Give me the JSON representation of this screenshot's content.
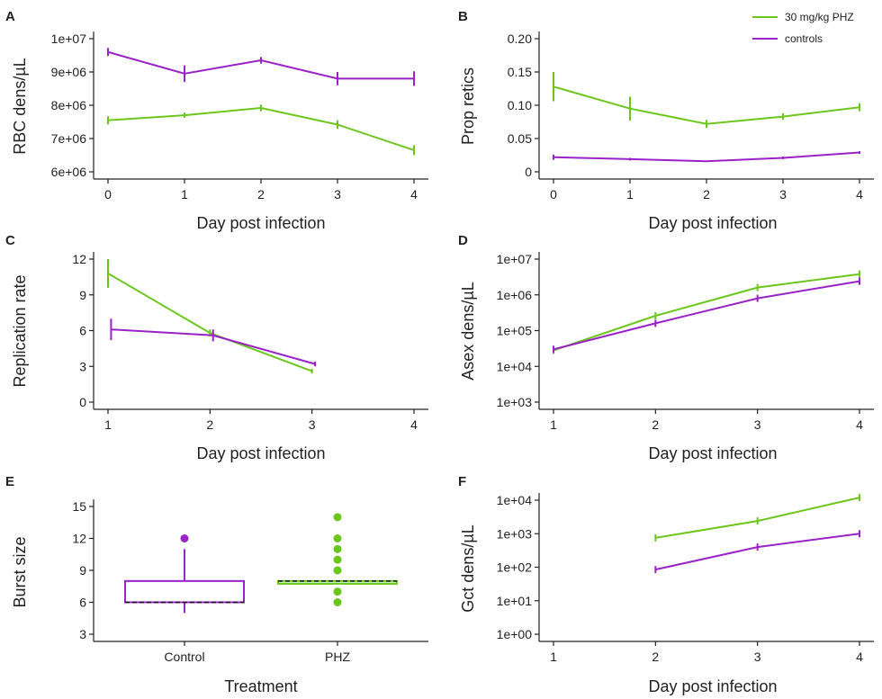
{
  "legend": {
    "items": [
      {
        "label": "30 mg/kg PHZ",
        "color": "#6cc71c"
      },
      {
        "label": "controls",
        "color": "#9a22c8"
      }
    ]
  },
  "chart_data": [
    {
      "panel": "A",
      "type": "line",
      "xlabel": "Day post infection",
      "ylabel": "RBC dens/µL",
      "xlim": [
        0,
        4
      ],
      "ylim": [
        6000000,
        10000000
      ],
      "xticks": [
        0,
        1,
        2,
        3,
        4
      ],
      "yticks": [
        6000000,
        7000000,
        8000000,
        9000000,
        10000000
      ],
      "ytick_labels": [
        "6e+06",
        "7e+06",
        "8e+06",
        "9e+06",
        "1e+07"
      ],
      "series": [
        {
          "name": "30 mg/kg PHZ",
          "color": "#6cc71c",
          "x": [
            0,
            1,
            2,
            3,
            4
          ],
          "values": [
            7550000,
            7700000,
            7920000,
            7420000,
            6650000
          ],
          "err": [
            120000,
            80000,
            100000,
            130000,
            150000
          ]
        },
        {
          "name": "controls",
          "color": "#9a22c8",
          "x": [
            0,
            1,
            2,
            3,
            4
          ],
          "values": [
            9600000,
            8950000,
            9350000,
            8800000,
            8800000
          ],
          "err": [
            120000,
            250000,
            100000,
            200000,
            220000
          ]
        }
      ]
    },
    {
      "panel": "B",
      "type": "line",
      "xlabel": "Day post infection",
      "ylabel": "Prop retics",
      "xlim": [
        0,
        4
      ],
      "ylim": [
        0,
        0.2
      ],
      "xticks": [
        0,
        1,
        2,
        3,
        4
      ],
      "yticks": [
        0,
        0.05,
        0.1,
        0.15,
        0.2
      ],
      "ytick_labels": [
        "0",
        "0.05",
        "0.10",
        "0.15",
        "0.20"
      ],
      "series": [
        {
          "name": "30 mg/kg PHZ",
          "color": "#6cc71c",
          "x": [
            0,
            1,
            2,
            3,
            4
          ],
          "values": [
            0.128,
            0.095,
            0.072,
            0.083,
            0.097
          ],
          "err": [
            0.022,
            0.018,
            0.006,
            0.005,
            0.006
          ]
        },
        {
          "name": "controls",
          "color": "#9a22c8",
          "x": [
            0,
            1,
            2,
            3,
            4
          ],
          "values": [
            0.022,
            0.019,
            0.016,
            0.021,
            0.029
          ],
          "err": [
            0.004,
            0.002,
            0.001,
            0.002,
            0.002
          ]
        }
      ]
    },
    {
      "panel": "C",
      "type": "line",
      "xlabel": "Day post infection",
      "ylabel": "Replication rate",
      "xlim": [
        1,
        4
      ],
      "ylim": [
        0,
        12
      ],
      "xticks": [
        1,
        2,
        3,
        4
      ],
      "yticks": [
        0,
        3,
        6,
        9,
        12
      ],
      "ytick_labels": [
        "0",
        "3",
        "6",
        "9",
        "12"
      ],
      "series": [
        {
          "name": "30 mg/kg PHZ",
          "color": "#6cc71c",
          "x": [
            1,
            2,
            3
          ],
          "values": [
            10.8,
            5.8,
            2.6
          ],
          "err": [
            1.2,
            0.3,
            0.2
          ]
        },
        {
          "name": "controls",
          "color": "#9a22c8",
          "x": [
            1.03,
            2.03,
            3.03
          ],
          "values": [
            6.1,
            5.6,
            3.2
          ],
          "err": [
            0.9,
            0.5,
            0.2
          ]
        }
      ]
    },
    {
      "panel": "D",
      "type": "line",
      "log": true,
      "xlabel": "Day post infection",
      "ylabel": "Asex dens/µL",
      "xlim": [
        1,
        4
      ],
      "ylim": [
        1000,
        10000000
      ],
      "xticks": [
        1,
        2,
        3,
        4
      ],
      "yticks": [
        1000,
        10000,
        100000,
        1000000,
        10000000
      ],
      "ytick_labels": [
        "1e+03",
        "1e+04",
        "1e+05",
        "1e+06",
        "1e+07"
      ],
      "series": [
        {
          "name": "30 mg/kg PHZ",
          "color": "#6cc71c",
          "x": [
            1,
            2,
            3,
            4
          ],
          "values": [
            28000,
            260000,
            1600000,
            3800000
          ],
          "err": [
            0,
            0,
            0,
            0
          ]
        },
        {
          "name": "controls",
          "color": "#9a22c8",
          "x": [
            1,
            2,
            3,
            4
          ],
          "values": [
            30000,
            160000,
            800000,
            2400000
          ],
          "err": [
            0,
            0,
            0,
            0
          ]
        }
      ]
    },
    {
      "panel": "E",
      "type": "box",
      "xlabel": "Treatment",
      "ylabel": "Burst size",
      "categories": [
        "Control",
        "PHZ"
      ],
      "ylim": [
        3,
        15
      ],
      "yticks": [
        3,
        6,
        9,
        12,
        15
      ],
      "ytick_labels": [
        "3",
        "6",
        "9",
        "12",
        "15"
      ],
      "boxes": [
        {
          "category": "Control",
          "color": "#9a22c8",
          "q1": 6,
          "median": 6,
          "q3": 8,
          "whisker_low": 5,
          "whisker_high": 11,
          "mean": 6,
          "outliers": [
            12
          ]
        },
        {
          "category": "PHZ",
          "color": "#6cc71c",
          "q1": 7.75,
          "median": 7.75,
          "q3": 8,
          "whisker_low": 7.75,
          "whisker_high": 8,
          "mean": 8,
          "outliers": [
            6,
            7,
            9,
            10,
            11,
            12,
            14
          ]
        }
      ]
    },
    {
      "panel": "F",
      "type": "line",
      "log": true,
      "xlabel": "Day post infection",
      "ylabel": "Gct dens/µL",
      "xlim": [
        1,
        4
      ],
      "ylim": [
        1,
        10000
      ],
      "xticks": [
        1,
        2,
        3,
        4
      ],
      "yticks": [
        1,
        10,
        100,
        1000,
        10000
      ],
      "ytick_labels": [
        "1e+00",
        "1e+01",
        "1e+02",
        "1e+03",
        "1e+04"
      ],
      "series": [
        {
          "name": "30 mg/kg PHZ",
          "color": "#6cc71c",
          "x": [
            2,
            3,
            4
          ],
          "values": [
            750,
            2400,
            12000
          ],
          "err": [
            0,
            0,
            0
          ]
        },
        {
          "name": "controls",
          "color": "#9a22c8",
          "x": [
            2,
            3,
            4
          ],
          "values": [
            85,
            400,
            1000
          ],
          "err": [
            0,
            0,
            0
          ]
        }
      ]
    }
  ]
}
